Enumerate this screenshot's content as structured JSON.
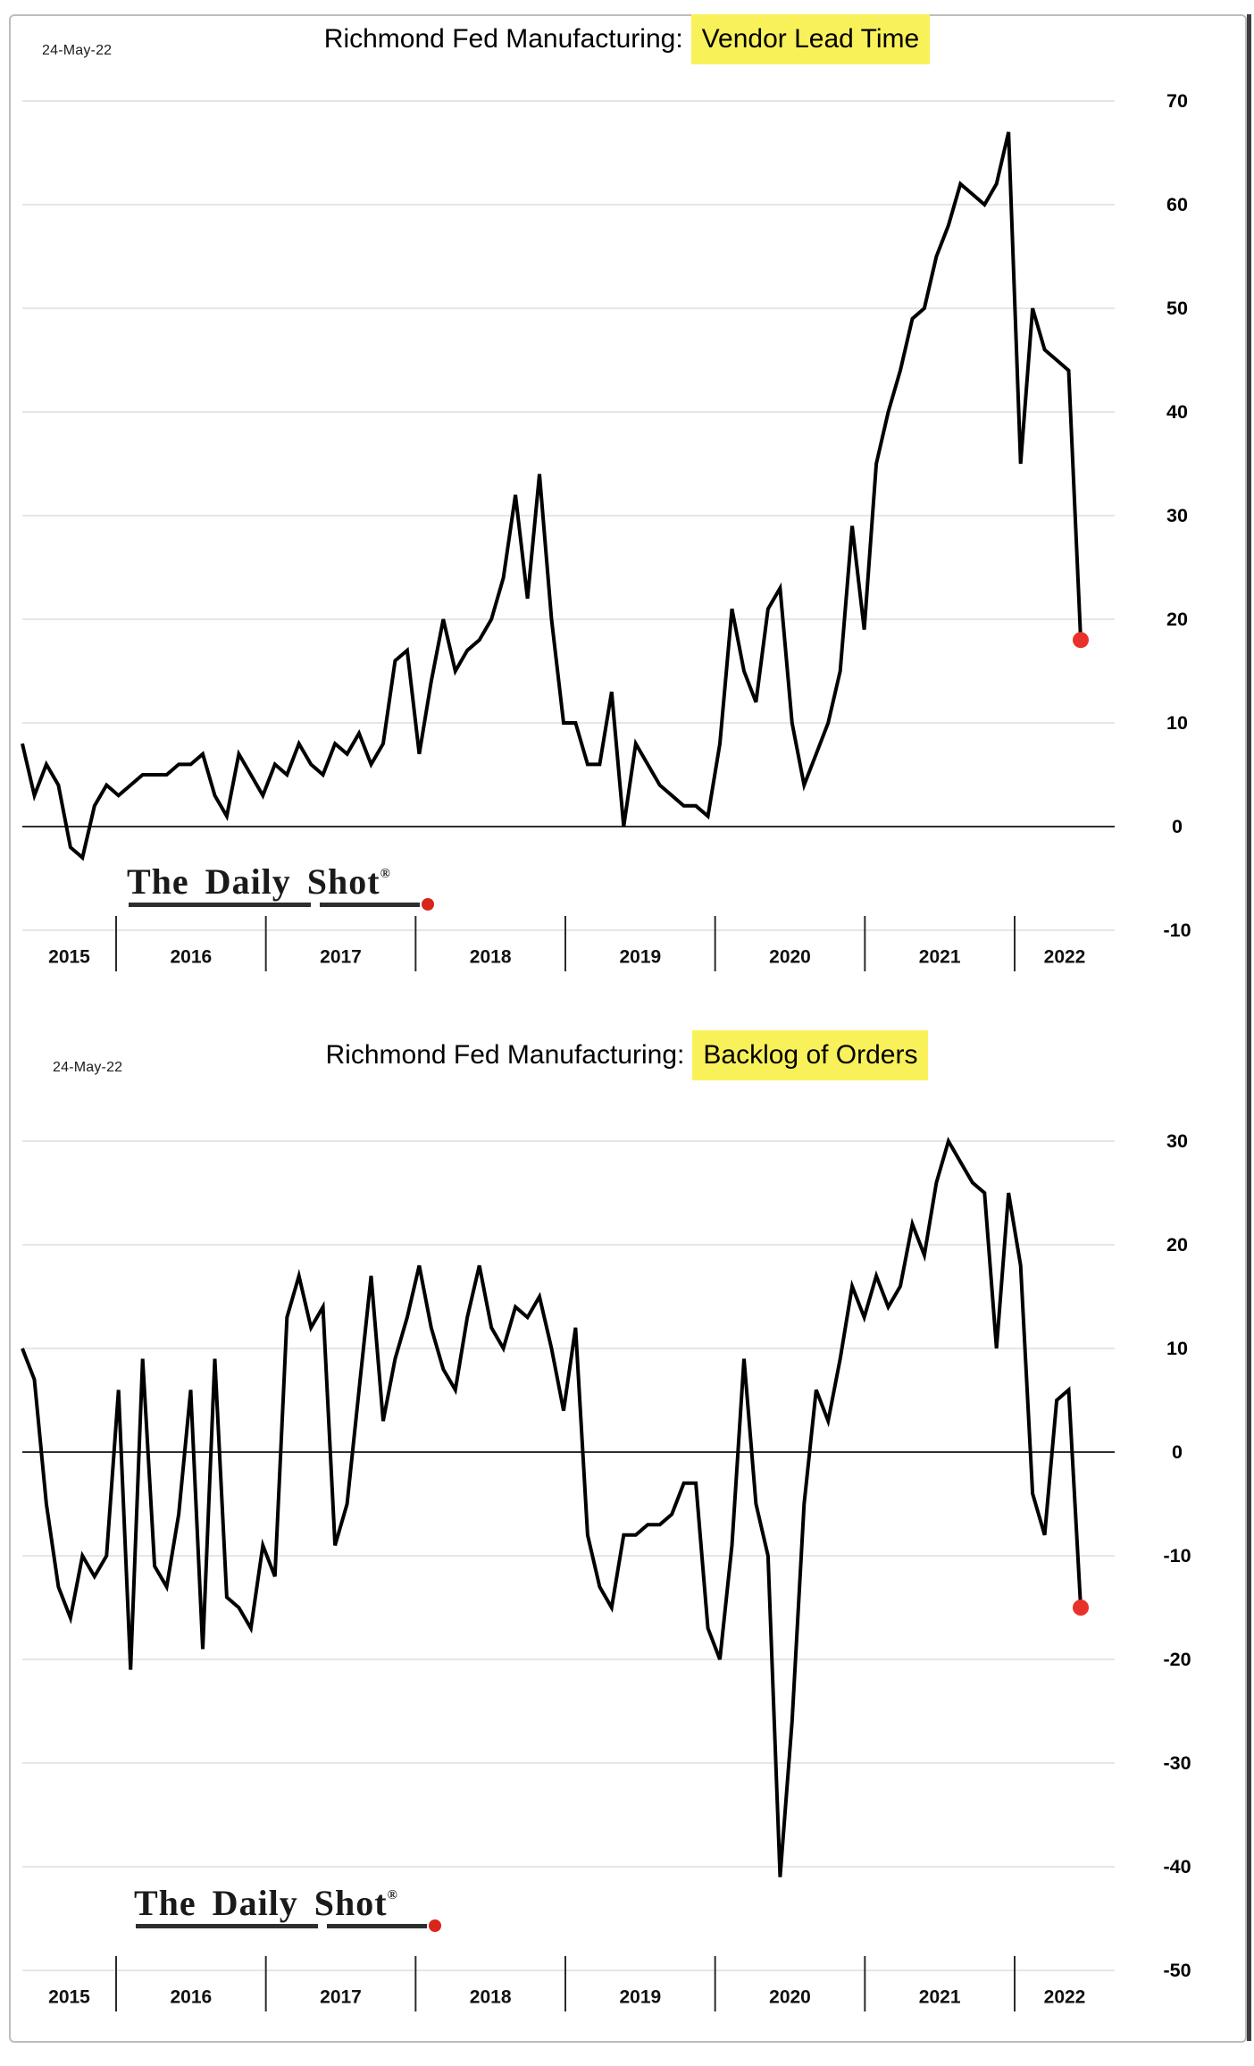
{
  "branding": {
    "logo_text": "The Daily Shot",
    "registered_mark": "®",
    "underline_color": "#2e2e2e",
    "logo_dot_color": "#d8261c"
  },
  "chart_data": [
    {
      "type": "line",
      "date_label": "24-May-22",
      "title_prefix": "Richmond Fed Manufacturing:",
      "title_highlight": "Vendor Lead Time",
      "highlight_color": "#f9f15a",
      "line_color": "#000000",
      "grid": true,
      "legend_position": "none",
      "axis_side": "right",
      "x_tick_labels": [
        "2015",
        "2016",
        "2017",
        "2018",
        "2019",
        "2020",
        "2021",
        "2022"
      ],
      "x_range": {
        "start": "2015-01",
        "end": "2022-05",
        "freq": "monthly"
      },
      "y_ticks": [
        70,
        60,
        50,
        40,
        30,
        20,
        10,
        0,
        -10
      ],
      "ylim": [
        -10,
        70
      ],
      "marker": {
        "value": 18,
        "color": "#e8312a",
        "label": "latest"
      },
      "values": [
        8,
        3,
        6,
        4,
        -2,
        -3,
        2,
        4,
        3,
        4,
        5,
        5,
        5,
        6,
        6,
        7,
        3,
        1,
        7,
        5,
        3,
        6,
        5,
        8,
        6,
        5,
        8,
        7,
        9,
        6,
        8,
        16,
        17,
        7,
        14,
        20,
        15,
        17,
        18,
        20,
        24,
        32,
        22,
        34,
        20,
        10,
        10,
        6,
        6,
        13,
        0,
        8,
        6,
        4,
        3,
        2,
        2,
        1,
        8,
        21,
        15,
        12,
        21,
        23,
        10,
        4,
        7,
        10,
        15,
        29,
        19,
        35,
        40,
        44,
        49,
        50,
        55,
        58,
        62,
        61,
        60,
        62,
        67,
        35,
        50,
        46,
        45,
        44,
        18
      ]
    },
    {
      "type": "line",
      "date_label": "24-May-22",
      "title_prefix": "Richmond Fed Manufacturing:",
      "title_highlight": "Backlog of Orders",
      "highlight_color": "#f9f15a",
      "line_color": "#000000",
      "grid": true,
      "legend_position": "none",
      "axis_side": "right",
      "x_tick_labels": [
        "2015",
        "2016",
        "2017",
        "2018",
        "2019",
        "2020",
        "2021",
        "2022"
      ],
      "x_range": {
        "start": "2015-01",
        "end": "2022-05",
        "freq": "monthly"
      },
      "y_ticks": [
        30,
        20,
        10,
        0,
        -10,
        -20,
        -30,
        -40,
        -50
      ],
      "ylim": [
        -50,
        30
      ],
      "marker": {
        "value": -15,
        "color": "#e8312a",
        "label": "latest"
      },
      "values": [
        10,
        7,
        -5,
        -13,
        -16,
        -10,
        -12,
        -10,
        6,
        -21,
        9,
        -11,
        -13,
        -6,
        6,
        -19,
        9,
        -14,
        -15,
        -17,
        -9,
        -12,
        13,
        17,
        12,
        14,
        -9,
        -5,
        6,
        17,
        3,
        9,
        13,
        18,
        12,
        8,
        6,
        13,
        18,
        12,
        10,
        14,
        13,
        15,
        10,
        4,
        12,
        -8,
        -13,
        -15,
        -8,
        -8,
        -7,
        -7,
        -6,
        -3,
        -3,
        -17,
        -20,
        -9,
        9,
        -5,
        -10,
        -41,
        -26,
        -5,
        6,
        3,
        9,
        16,
        13,
        17,
        14,
        16,
        22,
        19,
        26,
        30,
        28,
        26,
        25,
        10,
        25,
        18,
        -4,
        -8,
        5,
        6,
        -15
      ]
    }
  ]
}
